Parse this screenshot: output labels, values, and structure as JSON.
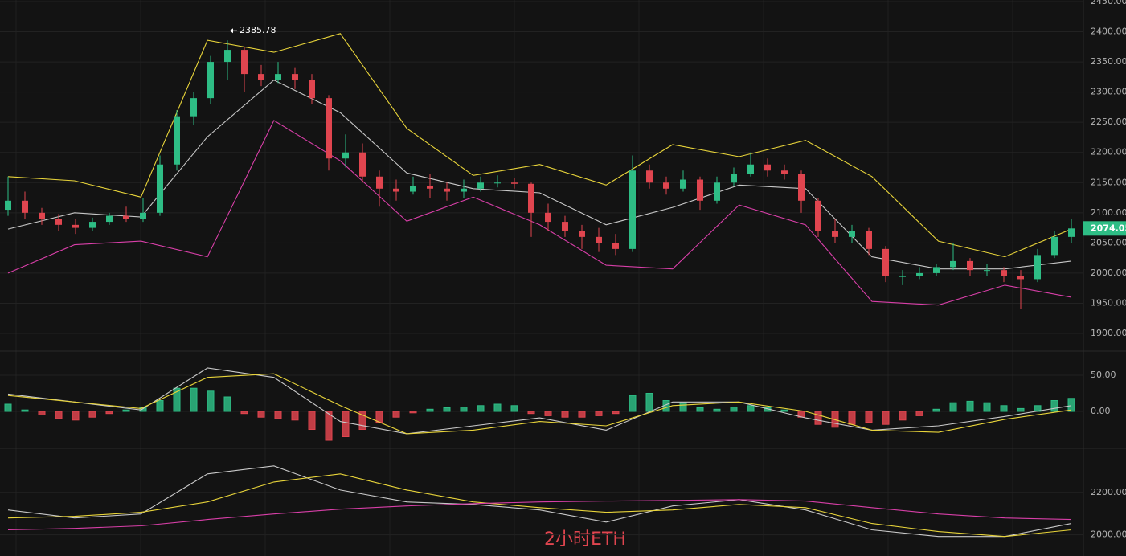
{
  "chart_data": [
    {
      "type": "candlestick",
      "ylim": [
        1900,
        2450
      ],
      "yticks": [
        {
          "value": 1900,
          "label": "1900.00"
        },
        {
          "value": 1950,
          "label": "1950.00"
        },
        {
          "value": 2000,
          "label": "2000.00"
        },
        {
          "value": 2050,
          "label": "2050.00"
        },
        {
          "value": 2100,
          "label": "2100.00"
        },
        {
          "value": 2150,
          "label": "2150.00"
        },
        {
          "value": 2200,
          "label": "2200.00"
        },
        {
          "value": 2250,
          "label": "2250.00"
        },
        {
          "value": 2300,
          "label": "2300.00"
        },
        {
          "value": 2350,
          "label": "2350.00"
        },
        {
          "value": 2400,
          "label": "2400.00"
        },
        {
          "value": 2450,
          "label": "2450.00"
        }
      ],
      "grid": true,
      "up_color": "#2ebd85",
      "down_color": "#e0454f",
      "open": [
        2105,
        2120,
        2100,
        2090,
        2080,
        2075,
        2085,
        2095,
        2090,
        2100,
        2180,
        2260,
        2290,
        2350,
        2370,
        2330,
        2320,
        2330,
        2320,
        2290,
        2190,
        2200,
        2160,
        2140,
        2135,
        2145,
        2140,
        2135,
        2140,
        2150,
        2150,
        2148,
        2100,
        2085,
        2070,
        2060,
        2050,
        2040,
        2170,
        2150,
        2140,
        2155,
        2120,
        2150,
        2165,
        2180,
        2170,
        2165,
        2120,
        2070,
        2060,
        2070,
        2040,
        1995,
        1995,
        2000,
        2010,
        2020,
        2005,
        2005,
        1995,
        1990,
        2030,
        2060
      ],
      "high": [
        2160,
        2135,
        2108,
        2098,
        2090,
        2092,
        2100,
        2110,
        2125,
        2195,
        2270,
        2300,
        2360,
        2385.78,
        2375,
        2345,
        2350,
        2340,
        2330,
        2295,
        2230,
        2215,
        2170,
        2155,
        2160,
        2165,
        2150,
        2155,
        2160,
        2162,
        2158,
        2150,
        2115,
        2095,
        2080,
        2075,
        2065,
        2195,
        2180,
        2160,
        2170,
        2160,
        2160,
        2175,
        2200,
        2190,
        2180,
        2170,
        2125,
        2090,
        2080,
        2075,
        2045,
        2005,
        2010,
        2015,
        2050,
        2025,
        2015,
        2010,
        2005,
        2040,
        2070,
        2090
      ],
      "low": [
        2095,
        2090,
        2080,
        2070,
        2065,
        2070,
        2080,
        2085,
        2085,
        2095,
        2170,
        2245,
        2280,
        2320,
        2300,
        2310,
        2315,
        2305,
        2280,
        2170,
        2175,
        2150,
        2110,
        2120,
        2130,
        2125,
        2120,
        2125,
        2135,
        2142,
        2140,
        2060,
        2070,
        2060,
        2040,
        2035,
        2030,
        2035,
        2140,
        2130,
        2135,
        2105,
        2115,
        2145,
        2160,
        2160,
        2155,
        2100,
        2060,
        2050,
        2050,
        2030,
        1985,
        1980,
        1990,
        1995,
        2005,
        1995,
        1995,
        1985,
        1940,
        1985,
        2025,
        2050
      ],
      "close": [
        2120,
        2100,
        2090,
        2080,
        2075,
        2085,
        2095,
        2090,
        2100,
        2180,
        2260,
        2290,
        2350,
        2370,
        2330,
        2320,
        2330,
        2320,
        2290,
        2190,
        2200,
        2160,
        2140,
        2135,
        2145,
        2140,
        2135,
        2140,
        2150,
        2150,
        2148,
        2100,
        2085,
        2070,
        2060,
        2050,
        2040,
        2170,
        2150,
        2140,
        2155,
        2120,
        2150,
        2165,
        2180,
        2170,
        2165,
        2120,
        2070,
        2060,
        2070,
        2040,
        1995,
        1995,
        2000,
        2010,
        2020,
        2005,
        2005,
        1995,
        1990,
        2030,
        2060,
        2074.05
      ],
      "series": [
        {
          "color": "#e8d43a",
          "values": [
            2160,
            2153,
            2126,
            2386,
            2366,
            2397,
            2240,
            2162,
            2180,
            2146,
            2213,
            2193,
            2220,
            2160,
            2053,
            2027,
            2073
          ]
        },
        {
          "color": "#c8c8c8",
          "values": [
            2073,
            2100,
            2093,
            2226,
            2320,
            2266,
            2166,
            2140,
            2133,
            2080,
            2109,
            2146,
            2140,
            2027,
            2007,
            2007,
            2020
          ]
        },
        {
          "color": "#d83fa8",
          "values": [
            2000,
            2047,
            2053,
            2027,
            2253,
            2186,
            2086,
            2126,
            2080,
            2013,
            2007,
            2113,
            2080,
            1953,
            1947,
            1980,
            1960
          ]
        }
      ]
    },
    {
      "type": "macd",
      "ylim": [
        -50,
        80
      ],
      "yticks": [
        {
          "value": 0,
          "label": "0.00"
        },
        {
          "value": 50,
          "label": "50.00"
        }
      ],
      "up_color": "#2ebd85",
      "down_color": "#e0454f",
      "values": [
        10,
        2,
        -5,
        -10,
        -12,
        -8,
        -3,
        2,
        5,
        15,
        32,
        32,
        28,
        20,
        -3,
        -8,
        -10,
        -12,
        -25,
        -40,
        -35,
        -25,
        -15,
        -8,
        -2,
        3,
        5,
        6,
        8,
        10,
        8,
        -3,
        -6,
        -8,
        -8,
        -6,
        -3,
        22,
        25,
        15,
        12,
        5,
        3,
        6,
        8,
        5,
        2,
        -8,
        -18,
        -22,
        -18,
        -15,
        -18,
        -12,
        -6,
        3,
        12,
        14,
        12,
        8,
        4,
        8,
        15,
        18
      ],
      "series": [
        {
          "color": "#c8c8c8",
          "values": [
            24,
            13,
            2,
            60,
            47,
            -14,
            -31,
            -20,
            -9,
            -26,
            13,
            13,
            -9,
            -26,
            -20,
            -7,
            8
          ]
        },
        {
          "color": "#e8d43a",
          "values": [
            22,
            13,
            4,
            47,
            52,
            8,
            -31,
            -26,
            -14,
            -20,
            8,
            13,
            0,
            -26,
            -29,
            -11,
            2
          ]
        }
      ]
    },
    {
      "type": "line",
      "ylim": [
        1900,
        2400
      ],
      "yticks": [
        {
          "value": 2000,
          "label": "2000.00"
        },
        {
          "value": 2200,
          "label": "2200.00"
        }
      ],
      "series": [
        {
          "color": "#c8c8c8",
          "values": [
            2117,
            2079,
            2098,
            2287,
            2325,
            2211,
            2155,
            2143,
            2117,
            2060,
            2136,
            2166,
            2117,
            2023,
            1992,
            1992,
            2053
          ]
        },
        {
          "color": "#e8d43a",
          "values": [
            2079,
            2087,
            2106,
            2155,
            2249,
            2287,
            2211,
            2155,
            2128,
            2106,
            2117,
            2143,
            2128,
            2053,
            2015,
            1992,
            2023
          ]
        },
        {
          "color": "#d83fa8",
          "values": [
            2023,
            2030,
            2042,
            2072,
            2098,
            2121,
            2136,
            2147,
            2155,
            2159,
            2162,
            2166,
            2159,
            2128,
            2098,
            2079,
            2072
          ]
        }
      ]
    }
  ],
  "caption": "2小时ETH"
}
